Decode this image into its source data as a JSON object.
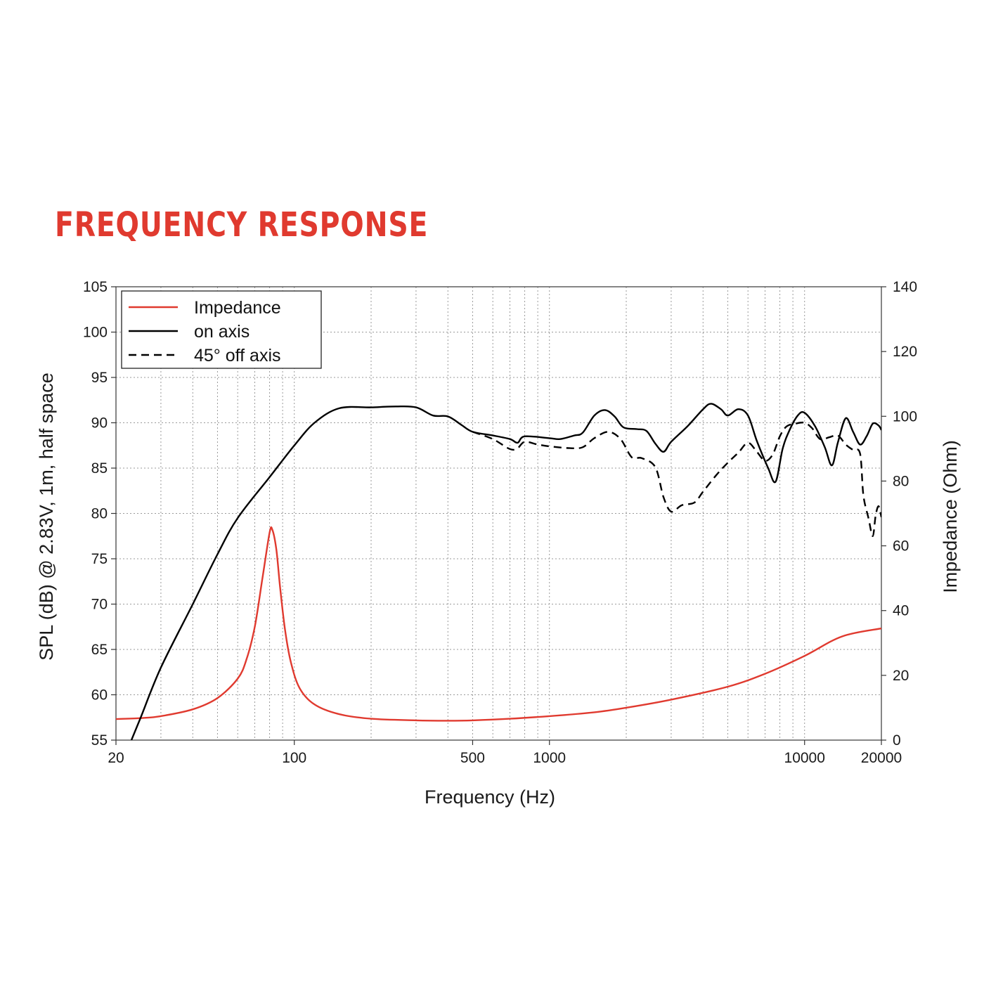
{
  "title": "FREQUENCY RESPONSE",
  "colors": {
    "title": "#e03a2f",
    "impedance": "#e03a2f",
    "spl": "#000000",
    "grid": "#9a9a9a"
  },
  "chart_data": {
    "type": "line",
    "x_label": "Frequency (Hz)",
    "y_label": "SPL (dB) @ 2.83V, 1m, half space",
    "y2_label": "Impedance (Ohm)",
    "x_scale": "log",
    "xlim": [
      20,
      20000
    ],
    "ylim": [
      55,
      105
    ],
    "y2lim": [
      0,
      140
    ],
    "x_ticks": [
      20,
      100,
      500,
      1000,
      10000,
      20000
    ],
    "x_tick_labels": [
      "20",
      "100",
      "500",
      "1000",
      "10000",
      "20000"
    ],
    "y_ticks": [
      55,
      60,
      65,
      70,
      75,
      80,
      85,
      90,
      95,
      100,
      105
    ],
    "y_tick_labels": [
      "55",
      "60",
      "65",
      "70",
      "75",
      "80",
      "85",
      "90",
      "95",
      "100",
      "105"
    ],
    "y2_ticks": [
      0,
      20,
      40,
      60,
      80,
      100,
      120,
      140
    ],
    "y2_tick_labels": [
      "0",
      "20",
      "40",
      "60",
      "80",
      "100",
      "120",
      "140"
    ],
    "grid": true,
    "legend_position": "top-left",
    "series": [
      {
        "name": "Impedance",
        "axis": "right",
        "color": "#e03a2f",
        "style": "solid",
        "points": [
          [
            20,
            6.5
          ],
          [
            25,
            6.8
          ],
          [
            30,
            7.4
          ],
          [
            40,
            9.5
          ],
          [
            50,
            13
          ],
          [
            60,
            19
          ],
          [
            65,
            25
          ],
          [
            70,
            35
          ],
          [
            75,
            50
          ],
          [
            80,
            64
          ],
          [
            82,
            65
          ],
          [
            85,
            59
          ],
          [
            88,
            47
          ],
          [
            92,
            34
          ],
          [
            97,
            24
          ],
          [
            105,
            16
          ],
          [
            120,
            11
          ],
          [
            150,
            8
          ],
          [
            200,
            6.6
          ],
          [
            300,
            6.1
          ],
          [
            400,
            6.0
          ],
          [
            500,
            6.1
          ],
          [
            700,
            6.6
          ],
          [
            1000,
            7.4
          ],
          [
            1500,
            8.6
          ],
          [
            2000,
            10
          ],
          [
            3000,
            12.5
          ],
          [
            5000,
            16.5
          ],
          [
            7000,
            20.5
          ],
          [
            10000,
            26
          ],
          [
            14000,
            32
          ],
          [
            20000,
            34.5
          ]
        ]
      },
      {
        "name": "on axis",
        "axis": "left",
        "color": "#000000",
        "style": "solid",
        "points": [
          [
            23,
            55
          ],
          [
            25,
            57.5
          ],
          [
            30,
            63
          ],
          [
            40,
            70
          ],
          [
            50,
            75.5
          ],
          [
            60,
            79.5
          ],
          [
            80,
            84
          ],
          [
            100,
            87.5
          ],
          [
            120,
            90
          ],
          [
            150,
            91.6
          ],
          [
            200,
            91.7
          ],
          [
            250,
            91.8
          ],
          [
            300,
            91.7
          ],
          [
            350,
            90.8
          ],
          [
            400,
            90.7
          ],
          [
            450,
            89.8
          ],
          [
            500,
            89
          ],
          [
            600,
            88.6
          ],
          [
            700,
            88.2
          ],
          [
            750,
            87.8
          ],
          [
            800,
            88.5
          ],
          [
            1000,
            88.3
          ],
          [
            1100,
            88.2
          ],
          [
            1250,
            88.6
          ],
          [
            1350,
            88.9
          ],
          [
            1500,
            90.8
          ],
          [
            1650,
            91.4
          ],
          [
            1800,
            90.7
          ],
          [
            1950,
            89.5
          ],
          [
            2200,
            89.3
          ],
          [
            2400,
            89.1
          ],
          [
            2600,
            87.7
          ],
          [
            2800,
            86.8
          ],
          [
            3000,
            87.9
          ],
          [
            3500,
            89.7
          ],
          [
            4000,
            91.5
          ],
          [
            4300,
            92.1
          ],
          [
            4700,
            91.5
          ],
          [
            5000,
            90.8
          ],
          [
            5500,
            91.5
          ],
          [
            6000,
            90.8
          ],
          [
            6500,
            88
          ],
          [
            7200,
            85
          ],
          [
            7700,
            83.5
          ],
          [
            8200,
            87.1
          ],
          [
            8700,
            89.1
          ],
          [
            9400,
            90.8
          ],
          [
            10000,
            91.1
          ],
          [
            11000,
            89.6
          ],
          [
            12000,
            87.3
          ],
          [
            12800,
            85.3
          ],
          [
            13500,
            87.8
          ],
          [
            14500,
            90.5
          ],
          [
            15500,
            89
          ],
          [
            16500,
            87.6
          ],
          [
            17500,
            88.5
          ],
          [
            18500,
            89.9
          ],
          [
            19500,
            89.7
          ],
          [
            20000,
            89.2
          ]
        ]
      },
      {
        "name": "45° off axis",
        "axis": "left",
        "color": "#000000",
        "style": "dashed",
        "points": [
          [
            500,
            89
          ],
          [
            600,
            88.2
          ],
          [
            700,
            87.1
          ],
          [
            750,
            87.2
          ],
          [
            800,
            87.9
          ],
          [
            900,
            87.6
          ],
          [
            1000,
            87.4
          ],
          [
            1200,
            87.2
          ],
          [
            1350,
            87.3
          ],
          [
            1500,
            88.3
          ],
          [
            1700,
            89
          ],
          [
            1900,
            88.2
          ],
          [
            2100,
            86.2
          ],
          [
            2300,
            86.1
          ],
          [
            2600,
            85.1
          ],
          [
            2800,
            81.8
          ],
          [
            3000,
            80.2
          ],
          [
            3300,
            80.9
          ],
          [
            3700,
            81.2
          ],
          [
            4000,
            82.4
          ],
          [
            4500,
            84.2
          ],
          [
            5000,
            85.6
          ],
          [
            5500,
            86.7
          ],
          [
            6000,
            87.8
          ],
          [
            6500,
            86.8
          ],
          [
            7000,
            85.8
          ],
          [
            7500,
            86.5
          ],
          [
            8000,
            88.5
          ],
          [
            8500,
            89.6
          ],
          [
            9200,
            89.9
          ],
          [
            10000,
            90
          ],
          [
            10700,
            89.4
          ],
          [
            11500,
            88.2
          ],
          [
            12500,
            88.4
          ],
          [
            13500,
            88.6
          ],
          [
            14500,
            87.6
          ],
          [
            15500,
            87
          ],
          [
            16500,
            86.6
          ],
          [
            17000,
            82
          ],
          [
            17800,
            79.5
          ],
          [
            18500,
            77.5
          ],
          [
            19000,
            79.8
          ],
          [
            19500,
            80.8
          ],
          [
            20000,
            79.6
          ]
        ]
      }
    ]
  }
}
